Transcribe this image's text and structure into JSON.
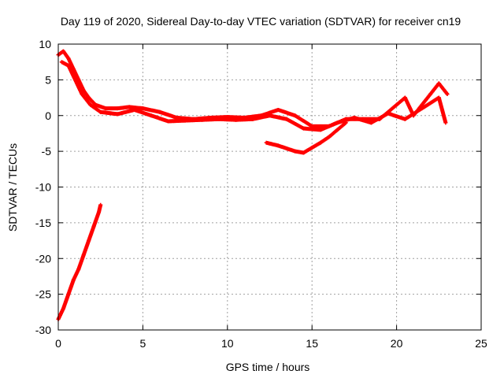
{
  "chart_data": {
    "type": "scatter",
    "title": "Day 119 of 2020, Sidereal Day-to-day VTEC variation (SDTVAR) for receiver cn19",
    "xlabel": "GPS time / hours",
    "ylabel": "SDTVAR / TECUs",
    "xlim": [
      0,
      25
    ],
    "ylim": [
      -30,
      10
    ],
    "xticks": [
      0,
      5,
      10,
      15,
      20,
      25
    ],
    "yticks": [
      10,
      5,
      0,
      -5,
      -10,
      -15,
      -20,
      -25,
      -30
    ],
    "grid": true,
    "marker": "+",
    "color": "#ff0000",
    "series": [
      {
        "name": "falling-branch",
        "points": [
          [
            0,
            -28.5
          ],
          [
            0.3,
            -27.0
          ],
          [
            0.6,
            -25.0
          ],
          [
            0.9,
            -23.0
          ],
          [
            1.2,
            -21.5
          ],
          [
            1.5,
            -19.5
          ],
          [
            1.8,
            -17.5
          ],
          [
            2.1,
            -15.5
          ],
          [
            2.4,
            -13.5
          ],
          [
            2.5,
            -12.5
          ]
        ]
      },
      {
        "name": "upper-band",
        "points": [
          [
            0,
            8.5
          ],
          [
            0.3,
            9.0
          ],
          [
            0.6,
            8.0
          ],
          [
            0.9,
            6.5
          ],
          [
            1.2,
            5.0
          ],
          [
            1.5,
            3.5
          ],
          [
            1.8,
            2.5
          ],
          [
            2.2,
            1.5
          ],
          [
            2.8,
            1.0
          ],
          [
            3.5,
            1.0
          ],
          [
            4.2,
            1.2
          ],
          [
            5.0,
            1.0
          ],
          [
            6.0,
            0.5
          ],
          [
            7.0,
            -0.3
          ],
          [
            8.0,
            -0.5
          ],
          [
            9.0,
            -0.3
          ],
          [
            10.0,
            -0.2
          ],
          [
            11.0,
            -0.3
          ],
          [
            12.0,
            0.0
          ],
          [
            13.0,
            0.8
          ],
          [
            14.0,
            0.0
          ],
          [
            15.0,
            -1.5
          ],
          [
            16.0,
            -1.5
          ],
          [
            17.0,
            -0.5
          ],
          [
            18.0,
            -0.5
          ],
          [
            19.0,
            -0.5
          ],
          [
            20.0,
            1.5
          ],
          [
            20.5,
            2.5
          ],
          [
            21.0,
            0.0
          ],
          [
            22.0,
            3.0
          ],
          [
            22.5,
            4.5
          ],
          [
            23.0,
            3.0
          ]
        ]
      },
      {
        "name": "lower-band",
        "points": [
          [
            0.2,
            7.5
          ],
          [
            0.6,
            7.0
          ],
          [
            1.0,
            5.0
          ],
          [
            1.4,
            3.0
          ],
          [
            1.9,
            1.5
          ],
          [
            2.5,
            0.5
          ],
          [
            3.5,
            0.2
          ],
          [
            4.5,
            0.8
          ],
          [
            5.5,
            0.0
          ],
          [
            6.5,
            -0.8
          ],
          [
            7.5,
            -0.7
          ],
          [
            8.5,
            -0.6
          ],
          [
            9.5,
            -0.5
          ],
          [
            10.5,
            -0.6
          ],
          [
            11.5,
            -0.5
          ],
          [
            12.5,
            0.0
          ],
          [
            13.5,
            -0.5
          ],
          [
            14.5,
            -1.8
          ],
          [
            15.5,
            -2.0
          ],
          [
            16.5,
            -1.0
          ],
          [
            17.5,
            -0.3
          ],
          [
            18.5,
            -1.0
          ],
          [
            19.5,
            0.3
          ],
          [
            20.5,
            -0.5
          ],
          [
            21.5,
            1.0
          ],
          [
            22.5,
            2.5
          ],
          [
            22.9,
            -1.0
          ]
        ]
      },
      {
        "name": "negative-arc",
        "points": [
          [
            12.3,
            -3.8
          ],
          [
            13.0,
            -4.2
          ],
          [
            13.5,
            -4.6
          ],
          [
            14.0,
            -5.0
          ],
          [
            14.5,
            -5.2
          ],
          [
            15.0,
            -4.5
          ],
          [
            15.5,
            -3.8
          ],
          [
            16.0,
            -3.0
          ],
          [
            16.5,
            -2.0
          ],
          [
            17.0,
            -1.0
          ]
        ]
      }
    ]
  }
}
